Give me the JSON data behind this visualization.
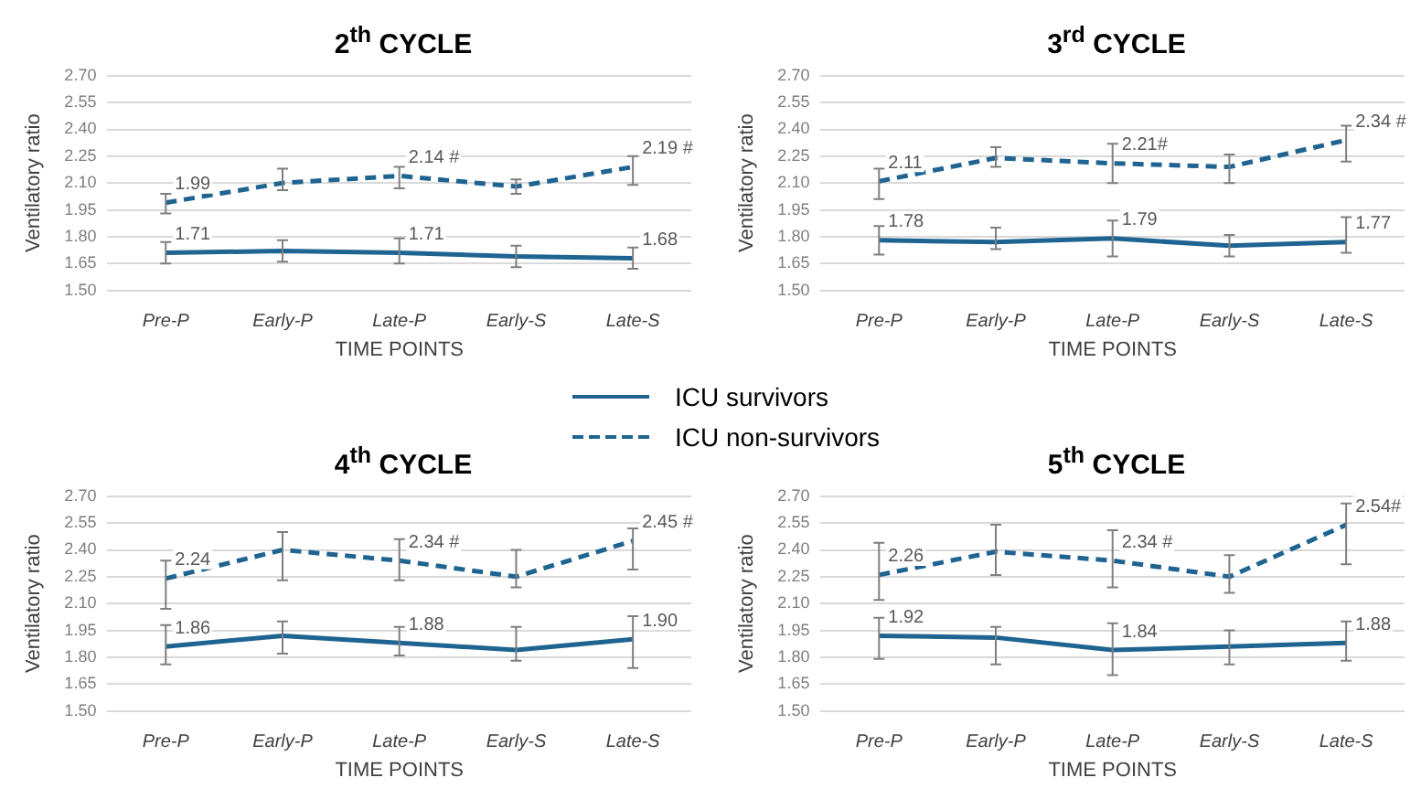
{
  "chart_data": [
    {
      "type": "line",
      "title": "2$^{th}$ CYCLE",
      "xlabel": "TIME POINTS",
      "ylabel": "Ventilatory ratio",
      "categories": [
        "Pre-P",
        "Early-P",
        "Late-P",
        "Early-S",
        "Late-S"
      ],
      "ylim": [
        1.5,
        2.7
      ],
      "yticks": [
        {
          "value": 1.5,
          "label": "1.50"
        },
        {
          "value": 1.65,
          "label": "1.65"
        },
        {
          "value": 1.8,
          "label": "1.80"
        },
        {
          "value": 1.95,
          "label": "1.95"
        },
        {
          "value": 2.1,
          "label": "2.10"
        },
        {
          "value": 2.25,
          "label": "2.25"
        },
        {
          "value": 2.4,
          "label": "2.40"
        },
        {
          "value": 2.55,
          "label": "2.55"
        },
        {
          "value": 2.7,
          "label": "2.70"
        }
      ],
      "grid": "y",
      "marker": "none",
      "legend": "bottom right",
      "series": [
        {
          "name": "ICU survivors",
          "color": "#1f6391",
          "line_style": "solid",
          "values": [
            1.71,
            1.72,
            1.71,
            1.69,
            1.68
          ],
          "errors": [
            [
              1.65,
              1.77
            ],
            [
              1.66,
              1.78
            ],
            [
              1.65,
              1.79
            ],
            [
              1.63,
              1.75
            ],
            [
              1.62,
              1.74
            ]
          ],
          "value_labels": [
            "1.71",
            null,
            "1.71",
            null,
            "1.68"
          ]
        },
        {
          "name": "ICU non-survivors",
          "color": "#1f6391",
          "line_style": "dashed",
          "values": [
            1.99,
            2.1,
            2.14,
            2.08,
            2.19
          ],
          "errors": [
            [
              1.93,
              2.04
            ],
            [
              2.06,
              2.18
            ],
            [
              2.07,
              2.19
            ],
            [
              2.04,
              2.12
            ],
            [
              2.09,
              2.25
            ]
          ],
          "value_labels": [
            "1.99",
            null,
            "2.14 #",
            null,
            "2.19 #"
          ]
        }
      ]
    },
    {
      "type": "line",
      "title": "3$^{rd}$ CYCLE",
      "xlabel": "TIME POINTS",
      "ylabel": "Ventilatory ratio",
      "categories": [
        "Pre-P",
        "Early-P",
        "Late-P",
        "Early-S",
        "Late-S"
      ],
      "ylim": [
        1.5,
        2.7
      ],
      "yticks": [
        {
          "value": 1.5,
          "label": "1.50"
        },
        {
          "value": 1.65,
          "label": "1.65"
        },
        {
          "value": 1.8,
          "label": "1.80"
        },
        {
          "value": 1.95,
          "label": "1.95"
        },
        {
          "value": 2.1,
          "label": "2.10"
        },
        {
          "value": 2.25,
          "label": "2.25"
        },
        {
          "value": 2.4,
          "label": "2.40"
        },
        {
          "value": 2.55,
          "label": "2.55"
        },
        {
          "value": 2.7,
          "label": "2.70"
        }
      ],
      "grid": "y",
      "marker": "none",
      "series": [
        {
          "color": "#1f6391",
          "line_style": "solid",
          "values": [
            1.78,
            1.77,
            1.79,
            1.75,
            1.77
          ],
          "errors": [
            [
              1.7,
              1.86
            ],
            [
              1.73,
              1.85
            ],
            [
              1.69,
              1.89
            ],
            [
              1.69,
              1.81
            ],
            [
              1.71,
              1.91
            ]
          ],
          "value_labels": [
            "1.78",
            null,
            "1.79",
            null,
            "1.77"
          ]
        },
        {
          "color": "#1f6391",
          "line_style": "dashed",
          "values": [
            2.11,
            2.24,
            2.21,
            2.19,
            2.34
          ],
          "errors": [
            [
              2.01,
              2.18
            ],
            [
              2.19,
              2.3
            ],
            [
              2.1,
              2.32
            ],
            [
              2.1,
              2.26
            ],
            [
              2.22,
              2.42
            ]
          ],
          "value_labels": [
            "2.11",
            null,
            "2.21#",
            null,
            "2.34 #"
          ]
        }
      ]
    },
    {
      "type": "line",
      "title": "4$^{th}$ CYCLE",
      "xlabel": "TIME POINTS",
      "ylabel": "Ventilatory ratio",
      "categories": [
        "Pre-P",
        "Early-P",
        "Late-P",
        "Early-S",
        "Late-S"
      ],
      "ylim": [
        1.5,
        2.7
      ],
      "yticks": [
        {
          "value": 1.5,
          "label": "1.50"
        },
        {
          "value": 1.65,
          "label": "1.65"
        },
        {
          "value": 1.8,
          "label": "1.80"
        },
        {
          "value": 1.95,
          "label": "1.95"
        },
        {
          "value": 2.1,
          "label": "2.10"
        },
        {
          "value": 2.25,
          "label": "2.25"
        },
        {
          "value": 2.4,
          "label": "2.40"
        },
        {
          "value": 2.55,
          "label": "2.55"
        },
        {
          "value": 2.7,
          "label": "2.70"
        }
      ],
      "grid": "y",
      "marker": "none",
      "series": [
        {
          "color": "#1f6391",
          "line_style": "solid",
          "values": [
            1.86,
            1.92,
            1.88,
            1.84,
            1.9
          ],
          "errors": [
            [
              1.76,
              1.98
            ],
            [
              1.82,
              2.0
            ],
            [
              1.81,
              1.97
            ],
            [
              1.78,
              1.97
            ],
            [
              1.74,
              2.03
            ]
          ],
          "value_labels": [
            "1.86",
            null,
            "1.88",
            null,
            "1.90"
          ]
        },
        {
          "color": "#1f6391",
          "line_style": "dashed",
          "values": [
            2.24,
            2.4,
            2.34,
            2.25,
            2.45
          ],
          "errors": [
            [
              2.07,
              2.34
            ],
            [
              2.23,
              2.5
            ],
            [
              2.23,
              2.46
            ],
            [
              2.19,
              2.4
            ],
            [
              2.29,
              2.52
            ]
          ],
          "value_labels": [
            "2.24",
            null,
            "2.34 #",
            null,
            "2.45 #"
          ]
        }
      ]
    },
    {
      "type": "line",
      "title": "5$^{th}$ CYCLE",
      "xlabel": "TIME POINTS",
      "ylabel": "Ventilatory ratio",
      "categories": [
        "Pre-P",
        "Early-P",
        "Late-P",
        "Early-S",
        "Late-S"
      ],
      "ylim": [
        1.5,
        2.7
      ],
      "yticks": [
        {
          "value": 1.5,
          "label": "1.50"
        },
        {
          "value": 1.65,
          "label": "1.65"
        },
        {
          "value": 1.8,
          "label": "1.80"
        },
        {
          "value": 1.95,
          "label": "1.95"
        },
        {
          "value": 2.1,
          "label": "2.10"
        },
        {
          "value": 2.25,
          "label": "2.25"
        },
        {
          "value": 2.4,
          "label": "2.40"
        },
        {
          "value": 2.55,
          "label": "2.55"
        },
        {
          "value": 2.7,
          "label": "2.70"
        }
      ],
      "grid": "y",
      "marker": "none",
      "series": [
        {
          "color": "#1f6391",
          "line_style": "solid",
          "values": [
            1.92,
            1.91,
            1.84,
            1.86,
            1.88
          ],
          "errors": [
            [
              1.79,
              2.02
            ],
            [
              1.76,
              1.97
            ],
            [
              1.7,
              1.99
            ],
            [
              1.76,
              1.95
            ],
            [
              1.78,
              2.0
            ]
          ],
          "value_labels": [
            "1.92",
            null,
            "1.84",
            null,
            "1.88"
          ]
        },
        {
          "color": "#1f6391",
          "line_style": "dashed",
          "values": [
            2.26,
            2.39,
            2.34,
            2.25,
            2.54
          ],
          "errors": [
            [
              2.12,
              2.44
            ],
            [
              2.26,
              2.54
            ],
            [
              2.19,
              2.51
            ],
            [
              2.16,
              2.37
            ],
            [
              2.32,
              2.66
            ]
          ],
          "value_labels": [
            "2.26",
            null,
            "2.34 #",
            null,
            "2.54#"
          ]
        }
      ]
    }
  ]
}
